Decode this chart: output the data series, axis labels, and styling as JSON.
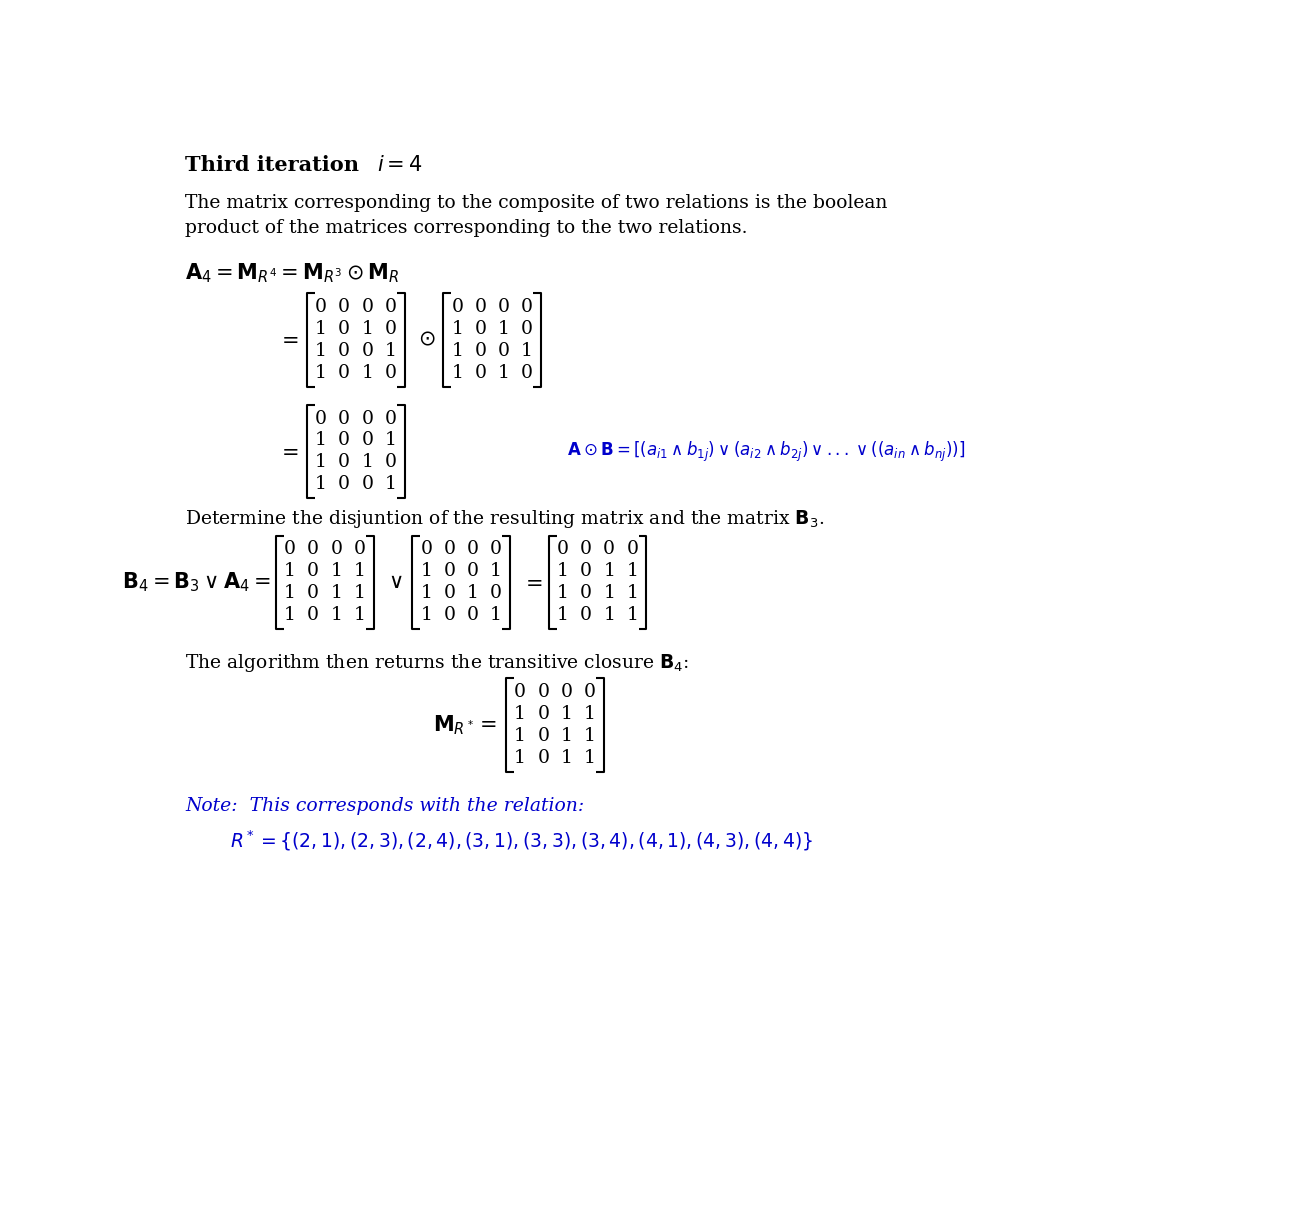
{
  "bg_color": "#ffffff",
  "black_color": "#000000",
  "blue_color": "#0000cc",
  "para1": "The matrix corresponding to the composite of two relations is the boolean",
  "para2": "product of the matrices corresponding to the two relations.",
  "matrix_MR3": [
    [
      0,
      0,
      0,
      0
    ],
    [
      1,
      0,
      1,
      0
    ],
    [
      1,
      0,
      0,
      1
    ],
    [
      1,
      0,
      1,
      0
    ]
  ],
  "matrix_MR": [
    [
      0,
      0,
      0,
      0
    ],
    [
      1,
      0,
      1,
      0
    ],
    [
      1,
      0,
      0,
      1
    ],
    [
      1,
      0,
      1,
      0
    ]
  ],
  "matrix_A4_result": [
    [
      0,
      0,
      0,
      0
    ],
    [
      1,
      0,
      0,
      1
    ],
    [
      1,
      0,
      1,
      0
    ],
    [
      1,
      0,
      0,
      1
    ]
  ],
  "matrix_B3": [
    [
      0,
      0,
      0,
      0
    ],
    [
      1,
      0,
      1,
      1
    ],
    [
      1,
      0,
      1,
      1
    ],
    [
      1,
      0,
      1,
      1
    ]
  ],
  "matrix_A4_for_B4": [
    [
      0,
      0,
      0,
      0
    ],
    [
      1,
      0,
      0,
      1
    ],
    [
      1,
      0,
      1,
      0
    ],
    [
      1,
      0,
      0,
      1
    ]
  ],
  "matrix_B4_result": [
    [
      0,
      0,
      0,
      0
    ],
    [
      1,
      0,
      1,
      1
    ],
    [
      1,
      0,
      1,
      1
    ],
    [
      1,
      0,
      1,
      1
    ]
  ],
  "matrix_MRstar": [
    [
      0,
      0,
      0,
      0
    ],
    [
      1,
      0,
      1,
      1
    ],
    [
      1,
      0,
      1,
      1
    ],
    [
      1,
      0,
      1,
      1
    ]
  ]
}
